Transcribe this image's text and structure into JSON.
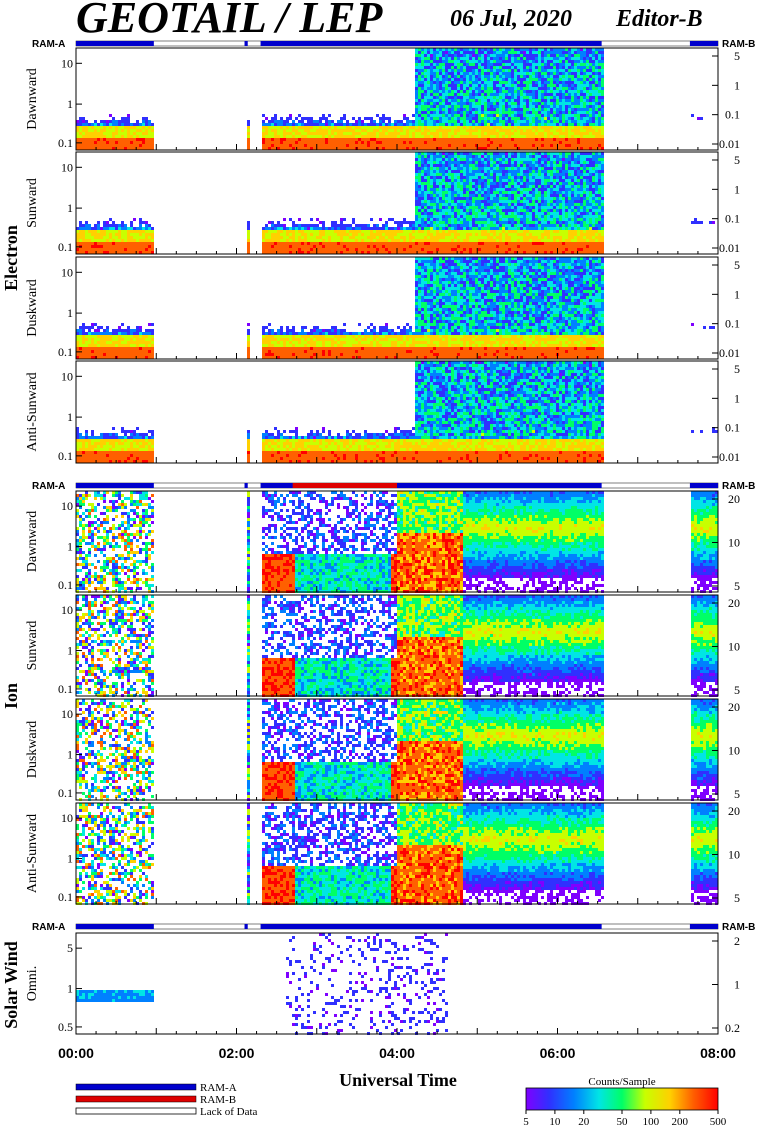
{
  "header": {
    "title": "GEOTAIL / LEP",
    "date": "06 Jul, 2020",
    "editor": "Editor-B"
  },
  "ram_labels": {
    "a": "RAM-A",
    "b": "RAM-B"
  },
  "chart_data": [
    {
      "type": "heatmap",
      "group": "Electron",
      "panel": "Dawnward",
      "yscale": "log",
      "yticks_left": [
        "10",
        "1",
        "0.1"
      ],
      "yticks_right": [
        "5",
        "1",
        "0.1",
        "0.01"
      ]
    },
    {
      "type": "heatmap",
      "group": "Electron",
      "panel": "Sunward",
      "yscale": "log",
      "yticks_left": [
        "10",
        "1",
        "0.1"
      ],
      "yticks_right": [
        "5",
        "1",
        "0.1",
        "0.01"
      ]
    },
    {
      "type": "heatmap",
      "group": "Electron",
      "panel": "Duskward",
      "yscale": "log",
      "yticks_left": [
        "10",
        "1",
        "0.1"
      ],
      "yticks_right": [
        "5",
        "1",
        "0.1",
        "0.01"
      ]
    },
    {
      "type": "heatmap",
      "group": "Electron",
      "panel": "Anti-Sunward",
      "yscale": "log",
      "yticks_left": [
        "10",
        "1",
        "0.1"
      ],
      "yticks_right": [
        "5",
        "1",
        "0.1",
        "0.01"
      ]
    },
    {
      "type": "heatmap",
      "group": "Ion",
      "panel": "Dawnward",
      "yscale": "log",
      "yticks_left": [
        "10",
        "1",
        "0.1"
      ],
      "yticks_right": [
        "20",
        "10",
        "5"
      ]
    },
    {
      "type": "heatmap",
      "group": "Ion",
      "panel": "Sunward",
      "yscale": "log",
      "yticks_left": [
        "10",
        "1",
        "0.1"
      ],
      "yticks_right": [
        "20",
        "10",
        "5"
      ]
    },
    {
      "type": "heatmap",
      "group": "Ion",
      "panel": "Duskward",
      "yscale": "log",
      "yticks_left": [
        "10",
        "1",
        "0.1"
      ],
      "yticks_right": [
        "20",
        "10",
        "5"
      ]
    },
    {
      "type": "heatmap",
      "group": "Ion",
      "panel": "Anti-Sunward",
      "yscale": "log",
      "yticks_left": [
        "10",
        "1",
        "0.1"
      ],
      "yticks_right": [
        "20",
        "10",
        "5"
      ]
    },
    {
      "type": "heatmap",
      "group": "Solar Wind",
      "panel": "Omni.",
      "yscale": "log",
      "yticks_left": [
        "5",
        "1",
        "0.5"
      ],
      "yticks_right": [
        "2",
        "1",
        "0.2"
      ]
    }
  ],
  "time_axis": {
    "label": "Universal Time",
    "ticks": [
      "00:00",
      "02:00",
      "04:00",
      "06:00",
      "08:00"
    ],
    "range_hours": [
      0,
      8
    ],
    "data_coverage_hours": [
      [
        0.0,
        0.97
      ],
      [
        2.1,
        2.14
      ],
      [
        2.3,
        6.55
      ],
      [
        7.65,
        8.0
      ]
    ]
  },
  "legend": {
    "items": [
      {
        "label": "RAM-A",
        "color": "#0000cc"
      },
      {
        "label": "RAM-B",
        "color": "#dd0000"
      },
      {
        "label": "Lack of Data",
        "color": "#ffffff"
      }
    ]
  },
  "colorbar": {
    "title": "Counts/Sample",
    "ticks": [
      "5",
      "10",
      "20",
      "50",
      "100",
      "200",
      "500"
    ]
  },
  "colors": {
    "ram_a": "#0000cc",
    "ram_b": "#dd0000",
    "scale": [
      "#7f00ff",
      "#3030ff",
      "#0080ff",
      "#00e5e5",
      "#00ff66",
      "#c8ff00",
      "#ffd000",
      "#ff6000",
      "#ff0000"
    ]
  }
}
